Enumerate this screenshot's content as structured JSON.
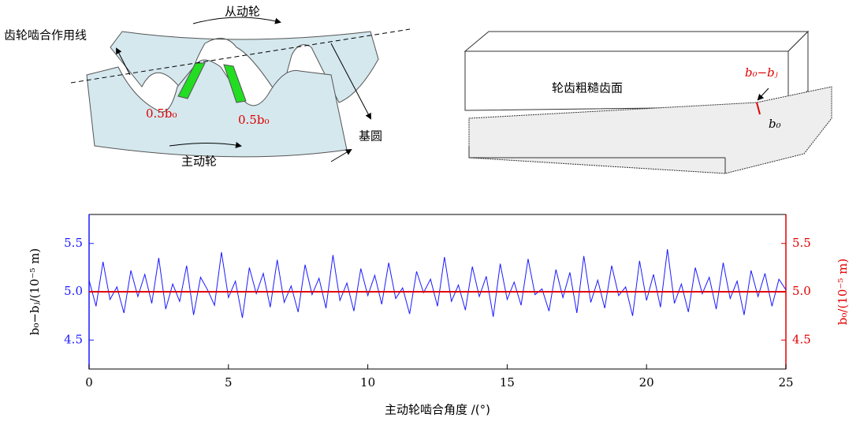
{
  "diagrams": {
    "driven_gear": "从动轮",
    "line_of_action": "齿轮啮合作用线",
    "tooth_gap_left": "0.5b₀",
    "tooth_gap_right": "0.5b₀",
    "driving_gear": "主动轮",
    "base_circle": "基圆",
    "rough_surface": "轮齿粗糙齿面",
    "gap_label": "b₀−bⱼ",
    "b0_label": "b₀"
  },
  "chart_data": {
    "type": "line",
    "xlabel": "主动轮啮合角度 /(°)",
    "ylabel": "b₀−bⱼ/(10⁻⁵ m)",
    "y2label": "b₀/(10⁻⁵ m)",
    "xlim": [
      0,
      25
    ],
    "xticks": [
      0,
      5,
      10,
      15,
      20,
      25
    ],
    "ylim": [
      4.2,
      5.8
    ],
    "yticks": [
      4.5,
      {
        "value": 5.0,
        "label": "5.0"
      },
      5.5
    ],
    "y2lim": [
      4.2,
      5.8
    ],
    "y2ticks": [
      4.5,
      {
        "value": 5.0,
        "label": "5.0"
      },
      5.5
    ],
    "series": [
      {
        "color": "#1a1aff",
        "x": [
          0,
          0.25,
          0.5,
          0.75,
          1,
          1.25,
          1.5,
          1.75,
          2,
          2.25,
          2.5,
          2.75,
          3,
          3.25,
          3.5,
          3.75,
          4,
          4.25,
          4.5,
          4.75,
          5,
          5.25,
          5.5,
          5.75,
          6,
          6.25,
          6.5,
          6.75,
          7,
          7.25,
          7.5,
          7.75,
          8,
          8.25,
          8.5,
          8.75,
          9,
          9.25,
          9.5,
          9.75,
          10,
          10.25,
          10.5,
          10.75,
          11,
          11.25,
          11.5,
          11.75,
          12,
          12.25,
          12.5,
          12.75,
          13,
          13.25,
          13.5,
          13.75,
          14,
          14.25,
          14.5,
          14.75,
          15,
          15.25,
          15.5,
          15.75,
          16,
          16.25,
          16.5,
          16.75,
          17,
          17.25,
          17.5,
          17.75,
          18,
          18.25,
          18.5,
          18.75,
          19,
          19.25,
          19.5,
          19.75,
          20,
          20.25,
          20.5,
          20.75,
          21,
          21.25,
          21.5,
          21.75,
          22,
          22.25,
          22.5,
          22.75,
          23,
          23.25,
          23.5,
          23.75,
          24,
          24.25,
          24.5,
          24.75,
          25
        ],
        "values": [
          5.12,
          4.85,
          5.31,
          4.92,
          5.05,
          4.78,
          5.22,
          4.95,
          5.18,
          4.88,
          5.35,
          4.82,
          5.08,
          4.9,
          5.27,
          4.76,
          5.15,
          5.02,
          4.86,
          5.41,
          4.94,
          5.11,
          4.73,
          5.25,
          4.98,
          5.19,
          4.84,
          5.33,
          4.89,
          5.06,
          4.79,
          5.28,
          4.97,
          5.14,
          4.83,
          5.38,
          4.91,
          5.09,
          4.8,
          5.24,
          4.96,
          5.17,
          4.87,
          5.3,
          4.93,
          5.04,
          4.77,
          5.21,
          4.99,
          5.13,
          4.85,
          5.36,
          4.9,
          5.07,
          4.81,
          5.26,
          4.95,
          5.16,
          4.74,
          5.29,
          4.92,
          5.1,
          4.86,
          5.34,
          4.97,
          5.03,
          4.8,
          5.23,
          4.94,
          5.2,
          4.78,
          5.37,
          4.89,
          5.12,
          4.83,
          5.27,
          4.96,
          5.05,
          4.75,
          5.32,
          4.91,
          5.18,
          4.84,
          5.44,
          4.88,
          5.08,
          4.79,
          5.25,
          4.98,
          5.15,
          4.82,
          5.3,
          4.93,
          5.11,
          4.76,
          5.22,
          4.95,
          5.19,
          4.85,
          5.13,
          5.02
        ]
      },
      {
        "color": "#e00000",
        "axis": "y2",
        "x": [
          0,
          25
        ],
        "values": [
          5.0,
          5.0
        ]
      }
    ]
  }
}
